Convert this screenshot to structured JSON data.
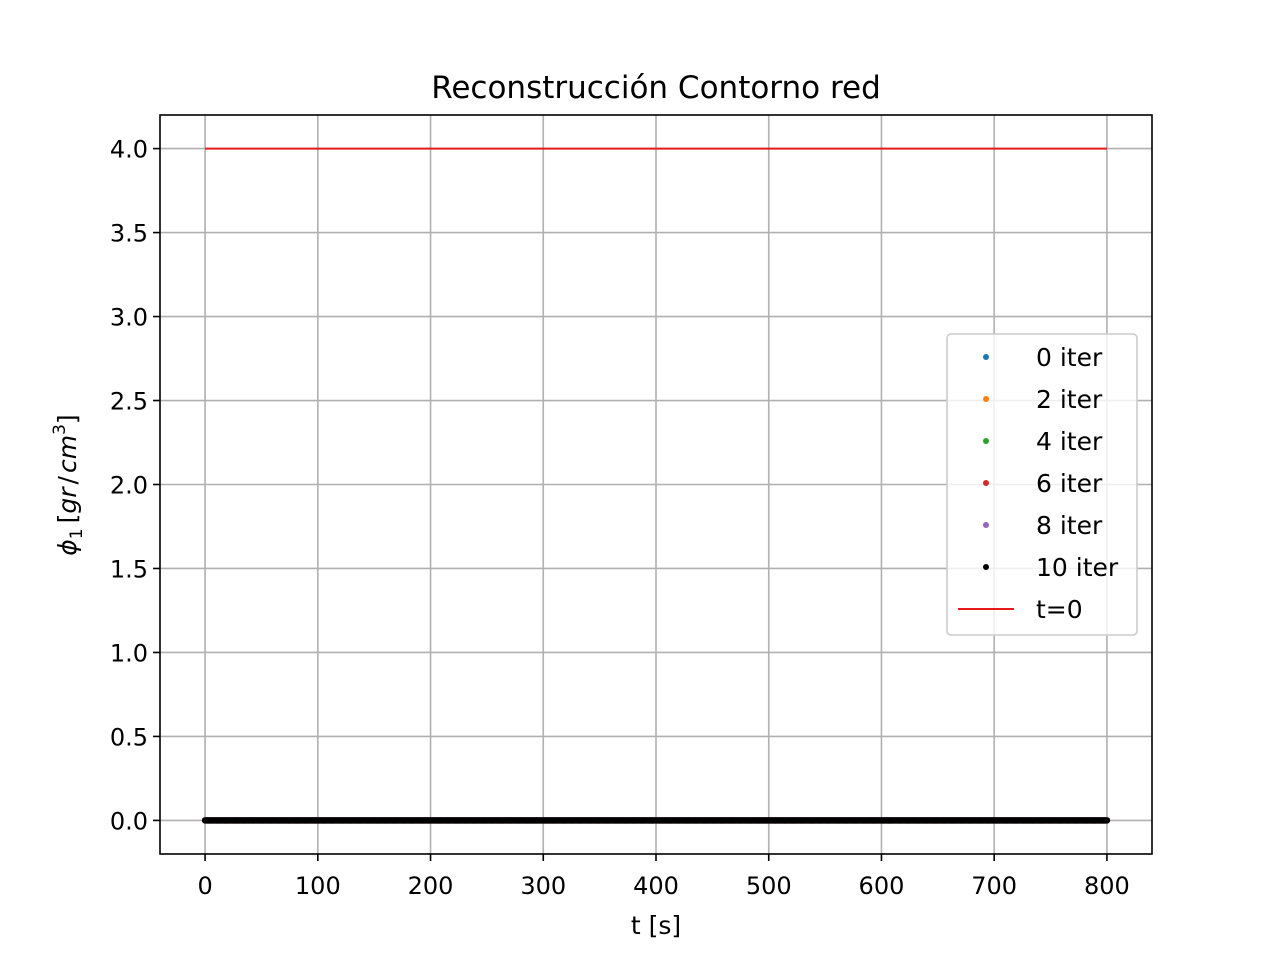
{
  "chart_data": {
    "type": "scatter",
    "title": "Reconstrucción Contorno red",
    "xlabel": "t [s]",
    "ylabel": {
      "prefix": "ϕ",
      "subscript": "1",
      "units_open": "[",
      "units_main": "gr",
      "units_sep": "/",
      "units_base": "cm",
      "units_exp": "3",
      "units_close": "]"
    },
    "xlim": [
      -40,
      840
    ],
    "ylim": [
      -0.2,
      4.2
    ],
    "xticks": [
      0,
      100,
      200,
      300,
      400,
      500,
      600,
      700,
      800
    ],
    "xtick_labels": [
      "0",
      "100",
      "200",
      "300",
      "400",
      "500",
      "600",
      "700",
      "800"
    ],
    "yticks": [
      0.0,
      0.5,
      1.0,
      1.5,
      2.0,
      2.5,
      3.0,
      3.5,
      4.0
    ],
    "ytick_labels": [
      "0.0",
      "0.5",
      "1.0",
      "1.5",
      "2.0",
      "2.5",
      "3.0",
      "3.5",
      "4.0"
    ],
    "grid": true,
    "legend_position": "center-right",
    "x_sampling": {
      "start": 0,
      "end": 800,
      "step": 1
    },
    "series": [
      {
        "name": "0 iter",
        "marker": "dot",
        "color": "#1f77b4",
        "y": 0.0
      },
      {
        "name": "2 iter",
        "marker": "dot",
        "color": "#ff7f0e",
        "y": 0.0
      },
      {
        "name": "4 iter",
        "marker": "dot",
        "color": "#2ca02c",
        "y": 0.0
      },
      {
        "name": "6 iter",
        "marker": "dot",
        "color": "#d62728",
        "y": 0.0
      },
      {
        "name": "8 iter",
        "marker": "dot",
        "color": "#9467bd",
        "y": 0.0
      },
      {
        "name": "10 iter",
        "marker": "dot",
        "color": "#000000",
        "y": 0.0
      },
      {
        "name": "t=0",
        "marker": "line",
        "color": "#e41a1c",
        "x": [
          0,
          800
        ],
        "y": [
          4.0,
          4.0
        ]
      }
    ]
  }
}
